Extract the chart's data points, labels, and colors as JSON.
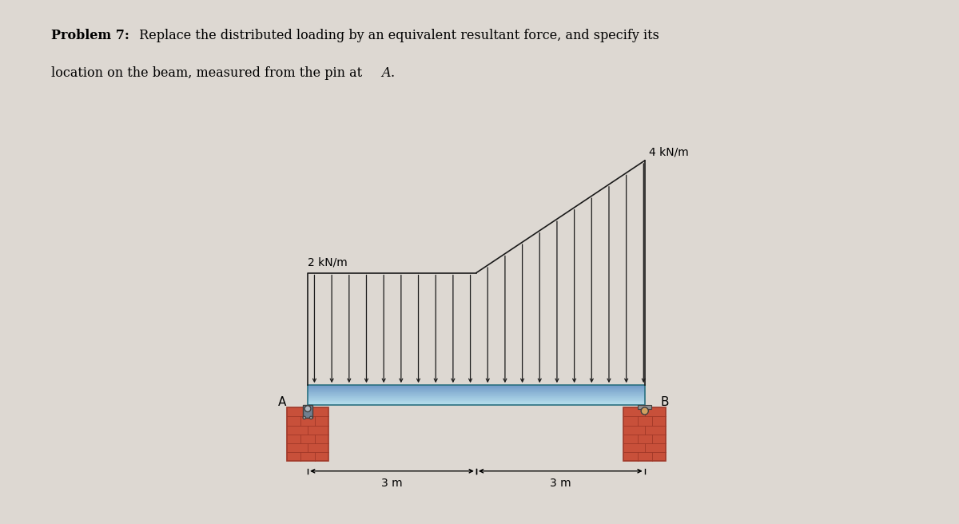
{
  "bg_color": "#ddd8d2",
  "beam_color_top": "#b8e0ee",
  "beam_color_mid": "#7ec8dc",
  "beam_color_bot": "#4a9db5",
  "beam_outline_color": "#2a7080",
  "brick_color": "#c8503a",
  "brick_mortar_color": "#a03828",
  "arrow_color": "#1a1a1a",
  "dim_color": "#1a1a1a",
  "text_color": "#1a1a1a",
  "num_arrows": 20,
  "load_scale": 1.0,
  "uniform_load": 2.0,
  "max_load": 4.0,
  "span": 3.0,
  "beam_thick": 0.18,
  "label_2kNm": "2 kN/m",
  "label_4kNm": "4 kN/m",
  "label_3m": "3 m",
  "label_A": "A",
  "label_B": "B"
}
